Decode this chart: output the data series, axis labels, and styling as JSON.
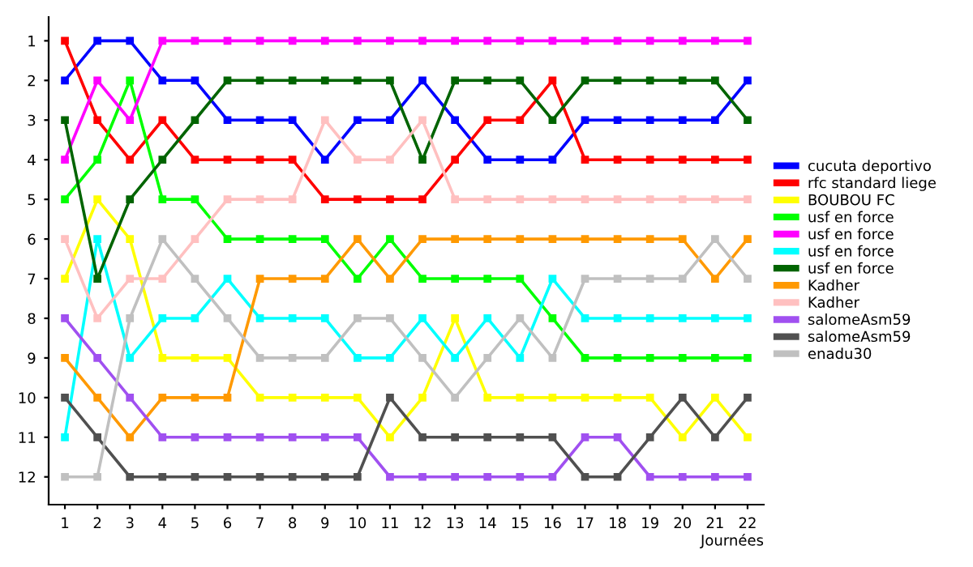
{
  "chart_data": {
    "type": "line",
    "xlabel": "Journées",
    "x": [
      1,
      2,
      3,
      4,
      5,
      6,
      7,
      8,
      9,
      10,
      11,
      12,
      13,
      14,
      15,
      16,
      17,
      18,
      19,
      20,
      21,
      22
    ],
    "xlim": [
      0.5,
      22.5
    ],
    "xticks": [
      1,
      2,
      3,
      4,
      5,
      6,
      7,
      8,
      9,
      10,
      11,
      12,
      13,
      14,
      15,
      16,
      17,
      18,
      19,
      20,
      21,
      22
    ],
    "ylim": [
      12.7,
      0.4
    ],
    "yticks": [
      1,
      2,
      3,
      4,
      5,
      6,
      7,
      8,
      9,
      10,
      11,
      12
    ],
    "marker": "square",
    "line_style": "solid",
    "grid": false,
    "legend": "right",
    "series": [
      {
        "name": "cucuta deportivo",
        "color": "#0000ff",
        "values": [
          2,
          1,
          1,
          2,
          2,
          3,
          3,
          3,
          4,
          3,
          3,
          2,
          3,
          4,
          4,
          4,
          3,
          3,
          3,
          3,
          3,
          2
        ]
      },
      {
        "name": "rfc standard liege",
        "color": "#ff0000",
        "values": [
          1,
          3,
          4,
          3,
          4,
          4,
          4,
          4,
          5,
          5,
          5,
          5,
          4,
          3,
          3,
          2,
          4,
          4,
          4,
          4,
          4,
          4
        ]
      },
      {
        "name": "BOUBOU FC",
        "color": "#ffff00",
        "values": [
          7,
          5,
          6,
          9,
          9,
          9,
          10,
          10,
          10,
          10,
          11,
          10,
          8,
          10,
          10,
          10,
          10,
          10,
          10,
          11,
          10,
          11
        ]
      },
      {
        "name": "usf en force",
        "color": "#00ff00",
        "values": [
          5,
          4,
          2,
          5,
          5,
          6,
          6,
          6,
          6,
          7,
          6,
          7,
          7,
          7,
          7,
          8,
          9,
          9,
          9,
          9,
          9,
          9
        ]
      },
      {
        "name": "usf en force",
        "color": "#ff00ff",
        "values": [
          4,
          2,
          3,
          1,
          1,
          1,
          1,
          1,
          1,
          1,
          1,
          1,
          1,
          1,
          1,
          1,
          1,
          1,
          1,
          1,
          1,
          1
        ]
      },
      {
        "name": "usf en force",
        "color": "#00ffff",
        "values": [
          11,
          6,
          9,
          8,
          8,
          7,
          8,
          8,
          8,
          9,
          9,
          8,
          9,
          8,
          9,
          7,
          8,
          8,
          8,
          8,
          8,
          8
        ]
      },
      {
        "name": "usf en force",
        "color": "#006400",
        "values": [
          3,
          7,
          5,
          4,
          3,
          2,
          2,
          2,
          2,
          2,
          2,
          4,
          2,
          2,
          2,
          3,
          2,
          2,
          2,
          2,
          2,
          3
        ]
      },
      {
        "name": "Kadher",
        "color": "#ff9900",
        "values": [
          9,
          10,
          11,
          10,
          10,
          10,
          7,
          7,
          7,
          6,
          7,
          6,
          6,
          6,
          6,
          6,
          6,
          6,
          6,
          6,
          7,
          6
        ]
      },
      {
        "name": "Kadher",
        "color": "#ffc0c0",
        "values": [
          6,
          8,
          7,
          7,
          6,
          5,
          5,
          5,
          3,
          4,
          4,
          3,
          5,
          5,
          5,
          5,
          5,
          5,
          5,
          5,
          5,
          5
        ]
      },
      {
        "name": "salomeAsm59",
        "color": "#a050f0",
        "values": [
          8,
          9,
          10,
          11,
          11,
          11,
          11,
          11,
          11,
          11,
          12,
          12,
          12,
          12,
          12,
          12,
          11,
          11,
          12,
          12,
          12,
          12
        ]
      },
      {
        "name": "salomeAsm59",
        "color": "#505050",
        "values": [
          10,
          11,
          12,
          12,
          12,
          12,
          12,
          12,
          12,
          12,
          10,
          11,
          11,
          11,
          11,
          11,
          12,
          12,
          11,
          10,
          11,
          10
        ]
      },
      {
        "name": "enadu30",
        "color": "#c0c0c0",
        "values": [
          12,
          12,
          8,
          6,
          7,
          8,
          9,
          9,
          9,
          8,
          8,
          9,
          10,
          9,
          8,
          9,
          7,
          7,
          7,
          7,
          6,
          7
        ]
      }
    ]
  }
}
